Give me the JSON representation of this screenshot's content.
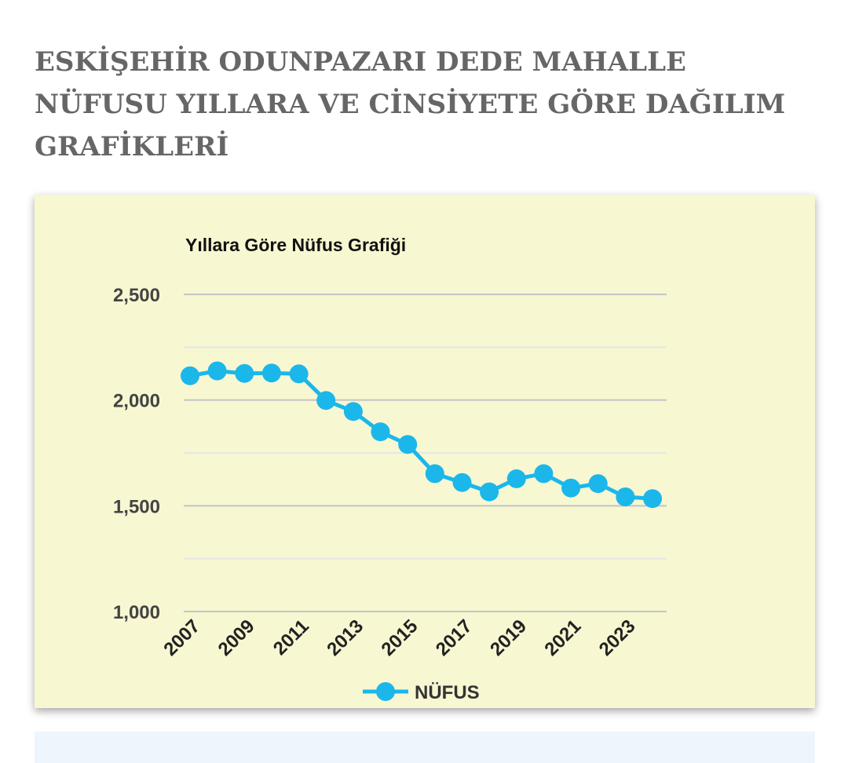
{
  "page": {
    "heading": "ESKİŞEHİR ODUNPAZARI DEDE MAHALLE NÜFUSU YILLARA VE CİNSİYETE GÖRE DAĞILIM GRAFİKLERİ"
  },
  "colors": {
    "card_background": "#f7f7d2",
    "series_color": "#1bb7ea",
    "grid_major": "#c4c4c4",
    "grid_minor": "#e6e6e6",
    "heading": "#666666"
  },
  "chart_data": {
    "type": "line",
    "title": "Yıllara Göre Nüfus Grafiği",
    "xlabel": "",
    "ylabel": "",
    "x": [
      2007,
      2008,
      2009,
      2010,
      2011,
      2012,
      2013,
      2014,
      2015,
      2016,
      2017,
      2018,
      2019,
      2020,
      2021,
      2022,
      2023,
      2024
    ],
    "x_tick_labels": [
      "2007",
      "2009",
      "2011",
      "2013",
      "2015",
      "2017",
      "2019",
      "2021",
      "2023"
    ],
    "ylim": [
      1000,
      2500
    ],
    "y_ticks": [
      1000,
      1500,
      2000,
      2500
    ],
    "y_tick_labels": [
      "1,000",
      "1,500",
      "2,000",
      "2,500"
    ],
    "y_minor_ticks": [
      1250,
      1750,
      2250
    ],
    "grid": true,
    "legend": "bottom",
    "series": [
      {
        "name": "NÜFUS",
        "color": "#1bb7ea",
        "values": [
          2115,
          2138,
          2126,
          2128,
          2124,
          1998,
          1946,
          1850,
          1790,
          1652,
          1610,
          1566,
          1628,
          1652,
          1584,
          1605,
          1542,
          1534
        ]
      }
    ]
  }
}
